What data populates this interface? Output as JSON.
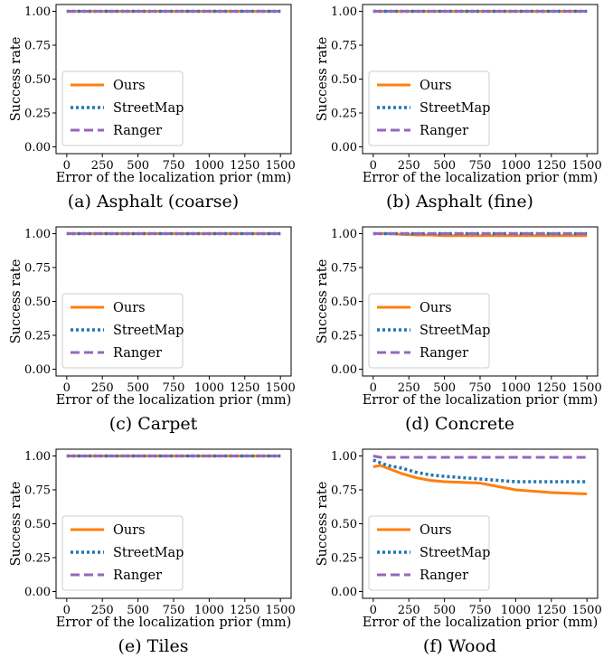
{
  "chart_data": [
    {
      "type": "line",
      "caption": "(a) Asphalt (coarse)",
      "xlabel": "Error of the localization prior (mm)",
      "ylabel": "Success rate",
      "xlim": [
        0,
        1500
      ],
      "ylim": [
        0,
        1.0
      ],
      "xticks": [
        0,
        250,
        500,
        750,
        1000,
        1250,
        1500
      ],
      "yticks": [
        "0.00",
        "0.25",
        "0.50",
        "0.75",
        "1.00"
      ],
      "legend": "lower-left",
      "x": [
        0,
        50,
        100,
        200,
        300,
        400,
        500,
        750,
        1000,
        1250,
        1500
      ],
      "series": [
        {
          "name": "Ours",
          "color": "#ff7f0e",
          "style": "solid",
          "values": [
            1,
            1,
            1,
            1,
            1,
            1,
            1,
            1,
            1,
            1,
            1
          ]
        },
        {
          "name": "StreetMap",
          "color": "#1f77b4",
          "style": "dotted",
          "values": [
            1,
            1,
            1,
            1,
            1,
            1,
            1,
            1,
            1,
            1,
            1
          ]
        },
        {
          "name": "Ranger",
          "color": "#9467bd",
          "style": "dashed",
          "values": [
            1,
            1,
            1,
            1,
            1,
            1,
            1,
            1,
            1,
            1,
            1
          ]
        }
      ]
    },
    {
      "type": "line",
      "caption": "(b) Asphalt (fine)",
      "xlabel": "Error of the localization prior (mm)",
      "ylabel": "Success rate",
      "xlim": [
        0,
        1500
      ],
      "ylim": [
        0,
        1.0
      ],
      "xticks": [
        0,
        250,
        500,
        750,
        1000,
        1250,
        1500
      ],
      "yticks": [
        "0.00",
        "0.25",
        "0.50",
        "0.75",
        "1.00"
      ],
      "legend": "lower-left",
      "x": [
        0,
        50,
        100,
        200,
        300,
        400,
        500,
        750,
        1000,
        1250,
        1500
      ],
      "series": [
        {
          "name": "Ours",
          "color": "#ff7f0e",
          "style": "solid",
          "values": [
            1,
            1,
            1,
            1,
            1,
            1,
            1,
            1,
            1,
            1,
            1
          ]
        },
        {
          "name": "StreetMap",
          "color": "#1f77b4",
          "style": "dotted",
          "values": [
            1,
            1,
            1,
            1,
            1,
            1,
            1,
            1,
            1,
            1,
            1
          ]
        },
        {
          "name": "Ranger",
          "color": "#9467bd",
          "style": "dashed",
          "values": [
            1,
            1,
            1,
            1,
            1,
            1,
            1,
            1,
            1,
            1,
            1
          ]
        }
      ]
    },
    {
      "type": "line",
      "caption": "(c) Carpet",
      "xlabel": "Error of the localization prior (mm)",
      "ylabel": "Success rate",
      "xlim": [
        0,
        1500
      ],
      "ylim": [
        0,
        1.0
      ],
      "xticks": [
        0,
        250,
        500,
        750,
        1000,
        1250,
        1500
      ],
      "yticks": [
        "0.00",
        "0.25",
        "0.50",
        "0.75",
        "1.00"
      ],
      "legend": "lower-left",
      "x": [
        0,
        50,
        100,
        200,
        300,
        400,
        500,
        750,
        1000,
        1250,
        1500
      ],
      "series": [
        {
          "name": "Ours",
          "color": "#ff7f0e",
          "style": "solid",
          "values": [
            1,
            1,
            1,
            1,
            1,
            1,
            1,
            1,
            1,
            1,
            1
          ]
        },
        {
          "name": "StreetMap",
          "color": "#1f77b4",
          "style": "dotted",
          "values": [
            1,
            1,
            1,
            1,
            1,
            1,
            1,
            1,
            1,
            1,
            1
          ]
        },
        {
          "name": "Ranger",
          "color": "#9467bd",
          "style": "dashed",
          "values": [
            1,
            1,
            1,
            1,
            1,
            1,
            1,
            1,
            1,
            1,
            1
          ]
        }
      ]
    },
    {
      "type": "line",
      "caption": "(d) Concrete",
      "xlabel": "Error of the localization prior (mm)",
      "ylabel": "Success rate",
      "xlim": [
        0,
        1500
      ],
      "ylim": [
        0,
        1.0
      ],
      "xticks": [
        0,
        250,
        500,
        750,
        1000,
        1250,
        1500
      ],
      "yticks": [
        "0.00",
        "0.25",
        "0.50",
        "0.75",
        "1.00"
      ],
      "legend": "lower-left",
      "x": [
        0,
        50,
        100,
        200,
        300,
        400,
        500,
        750,
        1000,
        1250,
        1500
      ],
      "series": [
        {
          "name": "Ours",
          "color": "#ff7f0e",
          "style": "solid",
          "values": [
            1,
            1,
            1,
            0.995,
            0.99,
            0.99,
            0.985,
            0.985,
            0.985,
            0.985,
            0.985
          ]
        },
        {
          "name": "StreetMap",
          "color": "#1f77b4",
          "style": "dotted",
          "values": [
            1,
            1,
            1,
            1,
            1,
            1,
            1,
            1,
            1,
            1,
            1
          ]
        },
        {
          "name": "Ranger",
          "color": "#9467bd",
          "style": "dashed",
          "values": [
            1,
            1,
            1,
            1,
            1,
            1,
            1,
            1,
            1,
            1,
            1
          ]
        }
      ]
    },
    {
      "type": "line",
      "caption": "(e) Tiles",
      "xlabel": "Error of the localization prior (mm)",
      "ylabel": "Success rate",
      "xlim": [
        0,
        1500
      ],
      "ylim": [
        0,
        1.0
      ],
      "xticks": [
        0,
        250,
        500,
        750,
        1000,
        1250,
        1500
      ],
      "yticks": [
        "0.00",
        "0.25",
        "0.50",
        "0.75",
        "1.00"
      ],
      "legend": "lower-left",
      "x": [
        0,
        50,
        100,
        200,
        300,
        400,
        500,
        750,
        1000,
        1250,
        1500
      ],
      "series": [
        {
          "name": "Ours",
          "color": "#ff7f0e",
          "style": "solid",
          "values": [
            1,
            1,
            1,
            1,
            1,
            1,
            1,
            1,
            1,
            1,
            1
          ]
        },
        {
          "name": "StreetMap",
          "color": "#1f77b4",
          "style": "dotted",
          "values": [
            1,
            1,
            1,
            1,
            1,
            1,
            1,
            1,
            1,
            1,
            1
          ]
        },
        {
          "name": "Ranger",
          "color": "#9467bd",
          "style": "dashed",
          "values": [
            1,
            1,
            1,
            1,
            1,
            1,
            1,
            1,
            1,
            1,
            1
          ]
        }
      ]
    },
    {
      "type": "line",
      "caption": "(f) Wood",
      "xlabel": "Error of the localization prior (mm)",
      "ylabel": "Success rate",
      "xlim": [
        0,
        1500
      ],
      "ylim": [
        0,
        1.0
      ],
      "xticks": [
        0,
        250,
        500,
        750,
        1000,
        1250,
        1500
      ],
      "yticks": [
        "0.00",
        "0.25",
        "0.50",
        "0.75",
        "1.00"
      ],
      "legend": "lower-left",
      "x": [
        0,
        50,
        100,
        200,
        300,
        400,
        500,
        750,
        1000,
        1250,
        1500
      ],
      "series": [
        {
          "name": "Ours",
          "color": "#ff7f0e",
          "style": "solid",
          "values": [
            0.92,
            0.93,
            0.91,
            0.87,
            0.84,
            0.82,
            0.81,
            0.8,
            0.75,
            0.73,
            0.72
          ]
        },
        {
          "name": "StreetMap",
          "color": "#1f77b4",
          "style": "dotted",
          "values": [
            0.97,
            0.95,
            0.93,
            0.91,
            0.88,
            0.86,
            0.85,
            0.83,
            0.81,
            0.81,
            0.81
          ]
        },
        {
          "name": "Ranger",
          "color": "#9467bd",
          "style": "dashed",
          "values": [
            1.0,
            0.99,
            0.99,
            0.99,
            0.99,
            0.99,
            0.99,
            0.99,
            0.99,
            0.99,
            0.99
          ]
        }
      ]
    }
  ]
}
